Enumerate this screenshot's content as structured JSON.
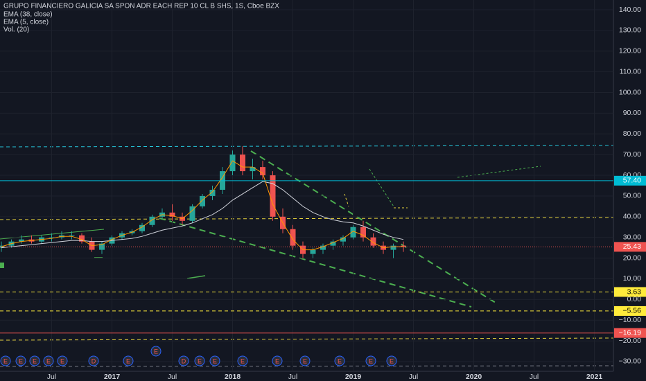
{
  "chart_data": {
    "type": "candlestick",
    "title": "GRUPO FINANCIERO GALICIA SA SPON ADR EACH REP 10 CL B SHS, 1S, Cboe BZX",
    "indicators": [
      "EMA (38, close)",
      "EMA (5, close)",
      "Vol. (20)"
    ],
    "categories": [
      null,
      null,
      null,
      null,
      null,
      "Jul",
      null,
      null,
      null,
      null,
      null,
      "2017",
      null,
      null,
      null,
      null,
      null,
      "Jul",
      null,
      null,
      null,
      null,
      null,
      "2018",
      null,
      null,
      null,
      null,
      null,
      "Jul",
      null,
      null,
      null,
      null,
      null,
      "2019",
      null,
      null,
      null,
      null,
      null,
      "Jul",
      null,
      null,
      null,
      null,
      null,
      "2020",
      null,
      null,
      null,
      null,
      null,
      "Jul",
      null,
      null,
      null,
      null,
      null,
      "2021",
      null,
      null
    ],
    "open": [
      25,
      26,
      28,
      29,
      28,
      30,
      30,
      31,
      31,
      28,
      24,
      27,
      30,
      32,
      33,
      36,
      40,
      42,
      40,
      38,
      45,
      50,
      53,
      62,
      70,
      62,
      64,
      60,
      40,
      34,
      26,
      22,
      24,
      26,
      28,
      30,
      35,
      30,
      26,
      24,
      26,
      null,
      null,
      null,
      null,
      null,
      null,
      null,
      null,
      null,
      null,
      null,
      null,
      null,
      null,
      null,
      null,
      null,
      null,
      null,
      null,
      null
    ],
    "high": [
      28,
      29,
      31,
      31,
      31,
      32,
      33,
      33,
      32,
      30,
      28,
      31,
      33,
      34,
      37,
      41,
      44,
      46,
      42,
      46,
      51,
      55,
      64,
      72,
      74,
      68,
      67,
      62,
      44,
      36,
      28,
      25,
      27,
      29,
      31,
      36,
      38,
      32,
      28,
      27,
      28,
      null,
      null,
      null,
      null,
      null,
      null,
      null,
      null,
      null,
      null,
      null,
      null,
      null,
      null,
      null,
      null,
      null,
      null,
      null,
      null,
      null
    ],
    "low": [
      23,
      25,
      27,
      27,
      27,
      28,
      29,
      29,
      27,
      23,
      22,
      26,
      29,
      31,
      32,
      35,
      39,
      38,
      36,
      37,
      44,
      48,
      51,
      60,
      60,
      58,
      58,
      38,
      32,
      24,
      20,
      20,
      22,
      24,
      26,
      29,
      28,
      25,
      22,
      20,
      23,
      null,
      null,
      null,
      null,
      null,
      null,
      null,
      null,
      null,
      null,
      null,
      null,
      null,
      null,
      null,
      null,
      null,
      null,
      null,
      null,
      null
    ],
    "close": [
      26,
      28,
      29,
      28,
      30,
      30,
      31,
      31,
      28,
      24,
      27,
      30,
      32,
      33,
      36,
      40,
      42,
      40,
      38,
      45,
      50,
      53,
      62,
      70,
      62,
      64,
      60,
      40,
      34,
      26,
      22,
      24,
      26,
      28,
      30,
      35,
      30,
      26,
      24,
      26,
      25.43,
      null,
      null,
      null,
      null,
      null,
      null,
      null,
      null,
      null,
      null,
      null,
      null,
      null,
      null,
      null,
      null,
      null,
      null,
      null,
      null,
      null
    ],
    "series": [
      {
        "name": "EMA (38, close)",
        "color": "#d1d4dc",
        "values": [
          25,
          25.5,
          26,
          26.5,
          27,
          27.5,
          28,
          28.5,
          28.5,
          28,
          28,
          28.5,
          29,
          29.5,
          30.5,
          32,
          33.5,
          34.5,
          35.5,
          37,
          39,
          41,
          44,
          48,
          51,
          54,
          57,
          56,
          53,
          49,
          45,
          42,
          40,
          38.5,
          37.5,
          37,
          35.5,
          33.5,
          31.5,
          30,
          29,
          null,
          null,
          null,
          null,
          null,
          null,
          null,
          null,
          null,
          null,
          null,
          null,
          null,
          null,
          null,
          null,
          null,
          null,
          null,
          null,
          null
        ]
      },
      {
        "name": "EMA (5, close)",
        "color": "#ff9800",
        "values": [
          25.5,
          27,
          28,
          28.5,
          29,
          29.5,
          30.5,
          30.5,
          29,
          26,
          26.5,
          29,
          31,
          32.5,
          35,
          38.5,
          41,
          40.5,
          39,
          43,
          48,
          52,
          59,
          67,
          64,
          64,
          61,
          46,
          37,
          29,
          24,
          24,
          25.5,
          27.5,
          29.5,
          33,
          31,
          27.5,
          25,
          25.5,
          25.5,
          null,
          null,
          null,
          null,
          null,
          null,
          null,
          null,
          null,
          null,
          null,
          null,
          null,
          null,
          null,
          null,
          null,
          null,
          null,
          null,
          null
        ]
      }
    ],
    "ylim": [
      -34.7,
      144.7
    ],
    "yticks": [
      {
        "value": -30,
        "label": "−30.00"
      },
      {
        "value": -20,
        "label": "−20.00"
      },
      {
        "value": -10,
        "label": "−10.00"
      },
      {
        "value": 0,
        "label": "0.00"
      },
      {
        "value": 10,
        "label": "10.00"
      },
      {
        "value": 20,
        "label": "20.00"
      },
      {
        "value": 30,
        "label": "30.00"
      },
      {
        "value": 40,
        "label": "40.00"
      },
      {
        "value": 50,
        "label": "50.00"
      },
      {
        "value": 60,
        "label": "60.00"
      },
      {
        "value": 70,
        "label": "70.00"
      },
      {
        "value": 80,
        "label": "80.00"
      },
      {
        "value": 90,
        "label": "90.00"
      },
      {
        "value": 100,
        "label": "100.00"
      },
      {
        "value": 110,
        "label": "110.00"
      },
      {
        "value": 120,
        "label": "120.00"
      },
      {
        "value": 130,
        "label": "130.00"
      },
      {
        "value": 140,
        "label": "140.00"
      }
    ],
    "price_lines": {
      "values": [
        57.4,
        25.43,
        3.63,
        -5.56,
        -16.19
      ],
      "value_labels": [
        "57.40",
        "25.43",
        "3.63",
        "−5.56",
        "−16.19"
      ],
      "colors": [
        "#00bcd4",
        "#ef5350",
        "#ffeb3b",
        "#ffeb3b",
        "#ef5350"
      ]
    },
    "up_color": "#26a69a",
    "down_color": "#ef5350",
    "grid": true,
    "events": [
      "E",
      "E",
      "E",
      "E",
      "E",
      "D",
      "E",
      "E",
      "D",
      "E",
      "E",
      "E",
      "E",
      "E",
      "E",
      "E",
      "E"
    ]
  }
}
